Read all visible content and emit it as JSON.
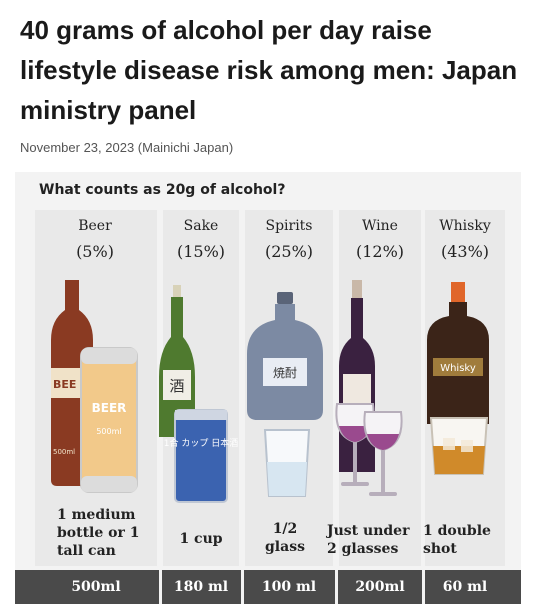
{
  "article": {
    "headline": "40 grams of alcohol per day raise lifestyle disease risk among men: Japan ministry panel",
    "dateline": "November 23, 2023 (Mainichi Japan)"
  },
  "infographic": {
    "title": "What counts as 20g of alcohol?",
    "drinks": [
      {
        "name": "Beer",
        "percent": "(5%)",
        "caption": "1 medium bottle or 1 tall can",
        "volume": "500ml",
        "bottle_label": "BEE",
        "can_label": "BEER",
        "can_size": "500ml",
        "bottle_size": "500ml"
      },
      {
        "name": "Sake",
        "percent": "(15%)",
        "caption": "1 cup",
        "volume": "180 ml",
        "bottle_label": "酒",
        "cup_label": "1合 カップ 日本酒"
      },
      {
        "name": "Spirits",
        "percent": "(25%)",
        "caption": "1/2 glass",
        "volume": "100 ml",
        "bottle_label": "焼酎"
      },
      {
        "name": "Wine",
        "percent": "(12%)",
        "caption": "Just under 2 glasses",
        "volume": "200ml"
      },
      {
        "name": "Whisky",
        "percent": "(43%)",
        "caption": "1 double shot",
        "volume": "60 ml",
        "bottle_label": "Whisky"
      }
    ],
    "colors": {
      "beer_bottle": "#8a3a22",
      "beer_can": "#f2c98a",
      "sake_bottle": "#4f7a2f",
      "sake_cup": "#3b63b0",
      "spirits_bottle": "#7c8aa3",
      "wine_bottle": "#3a2140",
      "wine_liquid": "#9a4a8e",
      "whisky_bottle": "#3b2418",
      "whisky_liquid": "#d08a2a",
      "volume_bar": "#4a4a4a"
    }
  }
}
